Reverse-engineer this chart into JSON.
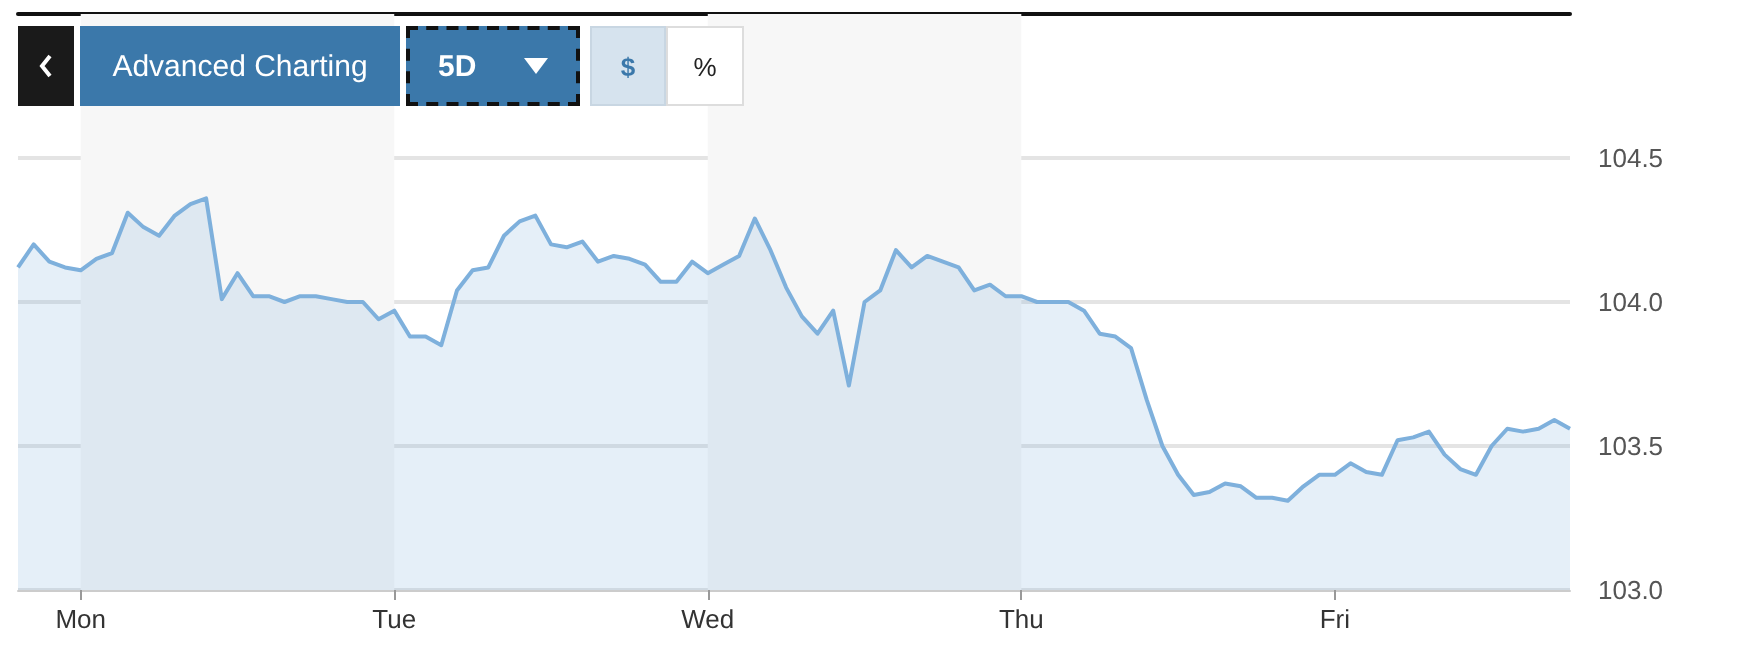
{
  "chart_data": {
    "type": "area",
    "annotations": [
      "Advanced Charting",
      "5D",
      "$",
      "%"
    ],
    "categories": [
      null,
      null,
      null,
      null,
      "Mon",
      null,
      null,
      null,
      null,
      null,
      null,
      null,
      null,
      null,
      null,
      null,
      null,
      null,
      null,
      null,
      null,
      null,
      null,
      null,
      "Tue",
      null,
      null,
      null,
      null,
      null,
      null,
      null,
      null,
      null,
      null,
      null,
      null,
      null,
      null,
      null,
      null,
      null,
      null,
      null,
      "Wed",
      null,
      null,
      null,
      null,
      null,
      null,
      null,
      null,
      null,
      null,
      null,
      null,
      null,
      null,
      null,
      null,
      null,
      null,
      null,
      "Thu",
      null,
      null,
      null,
      null,
      null,
      null,
      null,
      null,
      null,
      null,
      null,
      null,
      null,
      null,
      null,
      null,
      null,
      null,
      null,
      "Fri",
      null,
      null,
      null,
      null,
      null,
      null,
      null,
      null,
      null,
      null,
      null,
      null,
      null,
      null,
      null
    ],
    "series": [
      {
        "color": "#7eb0dc",
        "values": [
          104.12,
          104.2,
          104.14,
          104.12,
          104.11,
          104.15,
          104.17,
          104.31,
          104.26,
          104.23,
          104.3,
          104.34,
          104.36,
          104.01,
          104.1,
          104.02,
          104.02,
          104.0,
          104.02,
          104.02,
          104.01,
          104.0,
          104.0,
          103.94,
          103.97,
          103.88,
          103.88,
          103.85,
          104.04,
          104.11,
          104.12,
          104.23,
          104.28,
          104.3,
          104.2,
          104.19,
          104.21,
          104.14,
          104.16,
          104.15,
          104.13,
          104.07,
          104.07,
          104.14,
          104.1,
          104.13,
          104.16,
          104.29,
          104.18,
          104.05,
          103.95,
          103.89,
          103.97,
          103.71,
          104.0,
          104.04,
          104.18,
          104.12,
          104.16,
          104.14,
          104.12,
          104.04,
          104.06,
          104.02,
          104.02,
          104.0,
          104.0,
          104.0,
          103.97,
          103.89,
          103.88,
          103.84,
          103.66,
          103.5,
          103.4,
          103.33,
          103.34,
          103.37,
          103.36,
          103.32,
          103.32,
          103.31,
          103.36,
          103.4,
          103.4,
          103.44,
          103.41,
          103.4,
          103.52,
          103.53,
          103.55,
          103.47,
          103.42,
          103.4,
          103.5,
          103.56,
          103.55,
          103.56,
          103.59,
          103.56
        ]
      }
    ],
    "ylim": [
      103,
      105
    ],
    "yticks": [
      {
        "value": 103,
        "label": "103.0"
      },
      {
        "value": 103.5,
        "label": "103.5"
      },
      {
        "value": 104,
        "label": "104.0"
      },
      {
        "value": 104.5,
        "label": "104.5"
      }
    ],
    "bands": [
      {
        "axis": "x",
        "from": "Mon",
        "to": "Tue",
        "color": "#f7f7f7"
      },
      {
        "axis": "x",
        "from": "Wed",
        "to": "Thu",
        "color": "#f7f7f7"
      }
    ],
    "grid": "y",
    "marker": "none"
  }
}
